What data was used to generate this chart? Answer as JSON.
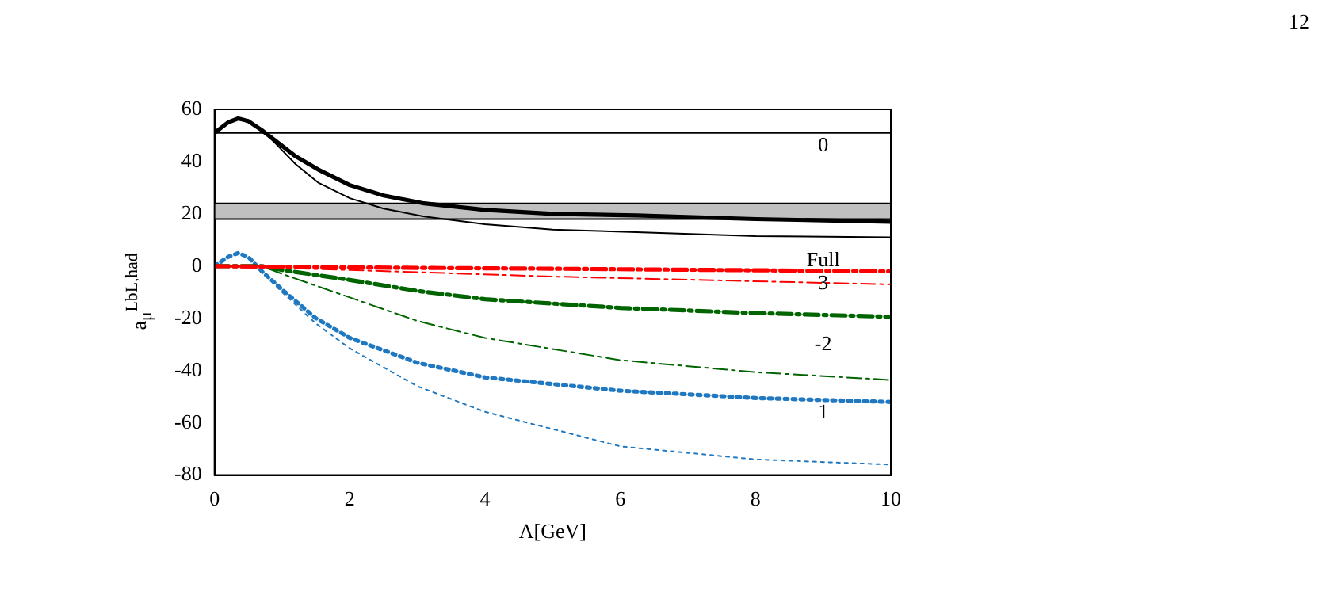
{
  "chart_data": {
    "type": "line",
    "xlabel": "Λ[GeV]",
    "ylabel": "a$_{μ}$$^{LbL,had}$",
    "xlim": [
      0,
      10
    ],
    "xticks": [
      0,
      2,
      4,
      6,
      8,
      10
    ],
    "ylim": [
      -80,
      60
    ],
    "yticks": [
      -80,
      -60,
      -40,
      -20,
      0,
      20,
      40,
      60
    ],
    "grid": false,
    "marker": "none",
    "bands": [
      {
        "axis": "y",
        "from": 18,
        "to": 24,
        "color": "#c0c0c0"
      }
    ],
    "series": [
      {
        "color": "#000000",
        "line_style": "solid",
        "x": [
          0,
          10
        ],
        "values": [
          51,
          51
        ]
      },
      {
        "color": "#000000",
        "line_style": "solid",
        "x": [
          0,
          0.2,
          0.35,
          0.5,
          0.7,
          0.9,
          1.2,
          1.53,
          2,
          2.5,
          3.1,
          4,
          5,
          6.24,
          8,
          10
        ],
        "values": [
          51,
          55,
          56.5,
          55.5,
          52,
          48,
          42,
          37,
          31,
          27,
          24,
          21.5,
          20,
          19.4,
          18,
          17
        ]
      },
      {
        "color": "#000000",
        "line_style": "solid",
        "x": [
          0,
          0.2,
          0.35,
          0.5,
          0.7,
          0.9,
          1.2,
          1.53,
          2,
          2.5,
          3.1,
          4,
          5,
          6.24,
          8,
          10
        ],
        "values": [
          51,
          55,
          56.5,
          55.5,
          52,
          47,
          39,
          32,
          26,
          22,
          19,
          16,
          14,
          13,
          11.5,
          11
        ]
      },
      {
        "color": "#ff0000",
        "line_style": "dashed",
        "x": [
          0,
          2,
          5,
          10
        ],
        "values": [
          0,
          -0.5,
          -1,
          -2
        ]
      },
      {
        "color": "#ff0000",
        "line_style": "dashed",
        "x": [
          0,
          2,
          5,
          10
        ],
        "values": [
          0,
          -1.5,
          -4,
          -7
        ]
      },
      {
        "color": "#006400",
        "line_style": "dashed",
        "x": [
          0,
          0.7,
          1,
          2,
          3,
          4,
          6,
          8,
          10
        ],
        "values": [
          0,
          0,
          -1.5,
          -5.3,
          -9.5,
          -12.7,
          -16,
          -18,
          -19.4
        ]
      },
      {
        "color": "#006400",
        "line_style": "dashed",
        "x": [
          0,
          0.7,
          1,
          2,
          3,
          4,
          6,
          8,
          10
        ],
        "values": [
          0,
          0,
          -3,
          -12,
          -21,
          -27.5,
          -36,
          -40.6,
          -43.6
        ]
      },
      {
        "color": "#1f78c0",
        "line_style": "dotted",
        "x": [
          0,
          0.2,
          0.35,
          0.5,
          0.7,
          1,
          1.5,
          2,
          3,
          4,
          6,
          8,
          10
        ],
        "values": [
          0,
          3.5,
          5,
          3.5,
          -2,
          -9,
          -20,
          -27.5,
          -37,
          -42.6,
          -47.7,
          -50.5,
          -52
        ]
      },
      {
        "color": "#1f78c0",
        "line_style": "dotted",
        "x": [
          0,
          0.2,
          0.35,
          0.5,
          0.7,
          1,
          1.5,
          2,
          3,
          4,
          6,
          8,
          10
        ],
        "values": [
          0,
          3.5,
          5,
          3.5,
          -2,
          -10,
          -22,
          -31.5,
          -46,
          -55.8,
          -69,
          -74,
          -76
        ]
      }
    ],
    "ref_lines": [
      {
        "axis": "y",
        "value": 18,
        "color": "#000000"
      },
      {
        "axis": "y",
        "value": 24,
        "color": "#000000"
      }
    ],
    "annotations": [
      "0",
      "Full",
      "3",
      "-2",
      "1",
      "12"
    ]
  }
}
